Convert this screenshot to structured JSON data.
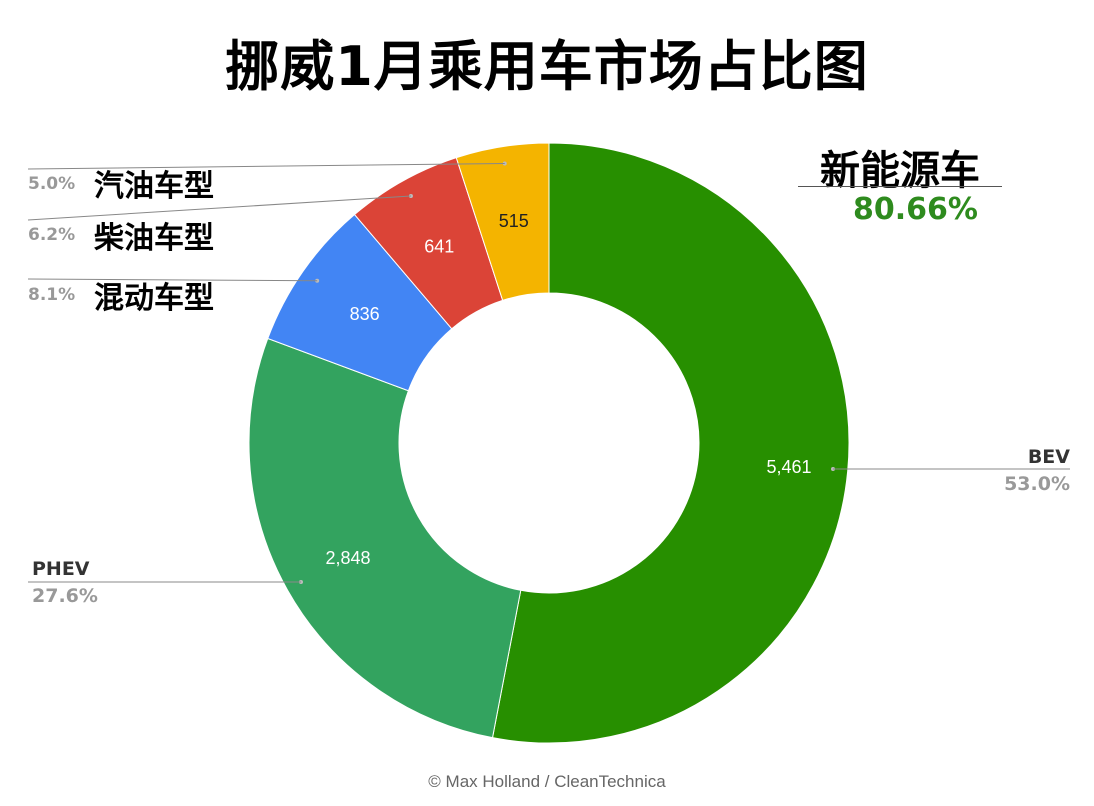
{
  "title": "挪威1月乘用车市场占比图",
  "highlight": {
    "label": "新能源车",
    "value": "80.66%"
  },
  "footer": "© Max Holland / CleanTechnica",
  "chart_data": {
    "type": "pie",
    "title": "挪威1月乘用车市场占比图",
    "donut": true,
    "slices": [
      {
        "name": "BEV",
        "value": 5461,
        "value_label": "5,461",
        "percent": "53.0%",
        "color": "#278f00"
      },
      {
        "name": "PHEV",
        "value": 2848,
        "value_label": "2,848",
        "percent": "27.6%",
        "color": "#33a35f"
      },
      {
        "name": "混动车型",
        "value": 836,
        "value_label": "836",
        "percent": "8.1%",
        "color": "#4285f4"
      },
      {
        "name": "柴油车型",
        "value": 641,
        "value_label": "641",
        "percent": "6.2%",
        "color": "#db4437"
      },
      {
        "name": "汽油车型",
        "value": 515,
        "value_label": "515",
        "percent": "5.0%",
        "color": "#f4b400"
      }
    ]
  }
}
